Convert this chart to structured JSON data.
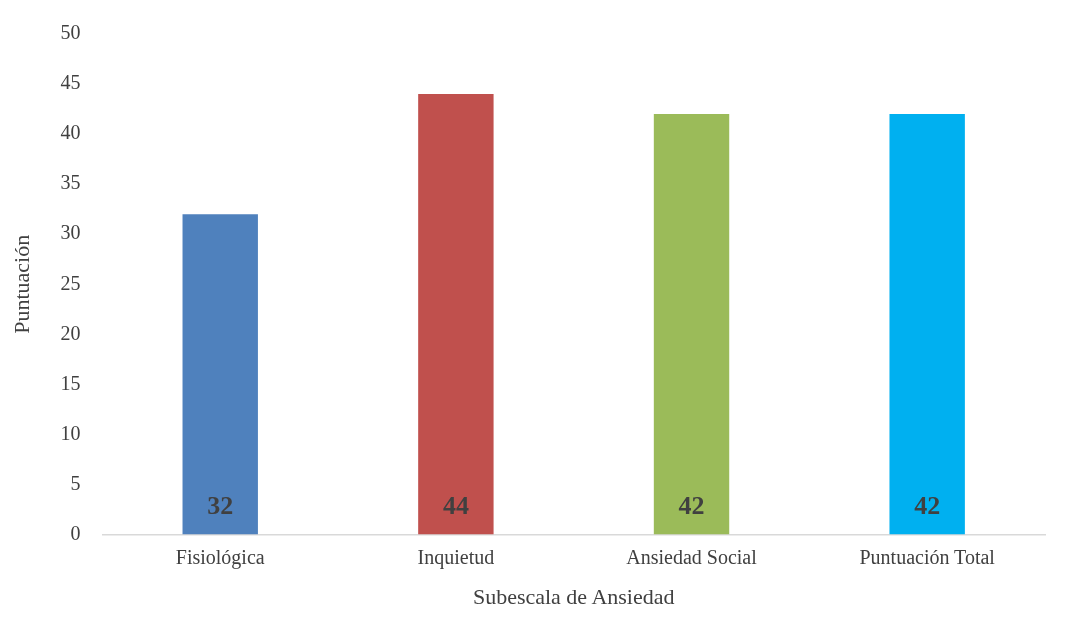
{
  "chart_data": {
    "type": "bar",
    "xlabel": "Subescala de Ansiedad",
    "ylabel": "Puntuación",
    "categories": [
      "Fisiológica",
      "Inquietud",
      "Ansiedad Social",
      "Puntuación Total"
    ],
    "values": [
      32,
      44,
      42,
      42
    ],
    "colors": [
      "#4f81bd",
      "#c0504d",
      "#9bbb59",
      "#00b0f0"
    ],
    "ylim": [
      0,
      50
    ],
    "yticks": [
      0,
      5,
      10,
      15,
      20,
      25,
      30,
      35,
      40,
      45,
      50
    ],
    "grid": false,
    "legend": false,
    "data_labels": true
  }
}
